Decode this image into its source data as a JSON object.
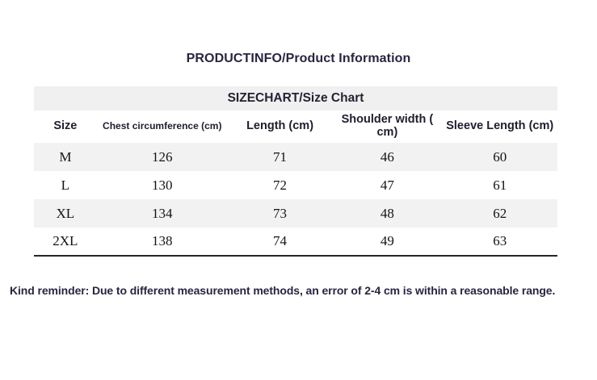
{
  "page": {
    "title": "PRODUCTINFO/Product Information",
    "reminder": "Kind reminder: Due to different measurement methods, an error of 2-4 cm is within a reasonable range."
  },
  "size_chart": {
    "title": "SIZECHART/Size Chart",
    "columns": [
      "Size",
      "Chest circumference (cm)",
      "Length (cm)",
      "Shoulder width ( cm)",
      "Sleeve Length (cm)"
    ],
    "rows": [
      {
        "size": "M",
        "chest": "126",
        "length": "71",
        "shoulder": "46",
        "sleeve": "60"
      },
      {
        "size": "L",
        "chest": "130",
        "length": "72",
        "shoulder": "47",
        "sleeve": "61"
      },
      {
        "size": "XL",
        "chest": "134",
        "length": "73",
        "shoulder": "48",
        "sleeve": "62"
      },
      {
        "size": "2XL",
        "chest": "138",
        "length": "74",
        "shoulder": "49",
        "sleeve": "63"
      }
    ]
  },
  "colors": {
    "band_background": "#f0f0f0",
    "row_stripe_background": "#f2f2f2",
    "heading_text": "#2a2440",
    "data_text": "#141414",
    "table_bottom_border": "#262626",
    "page_background": "#ffffff"
  }
}
